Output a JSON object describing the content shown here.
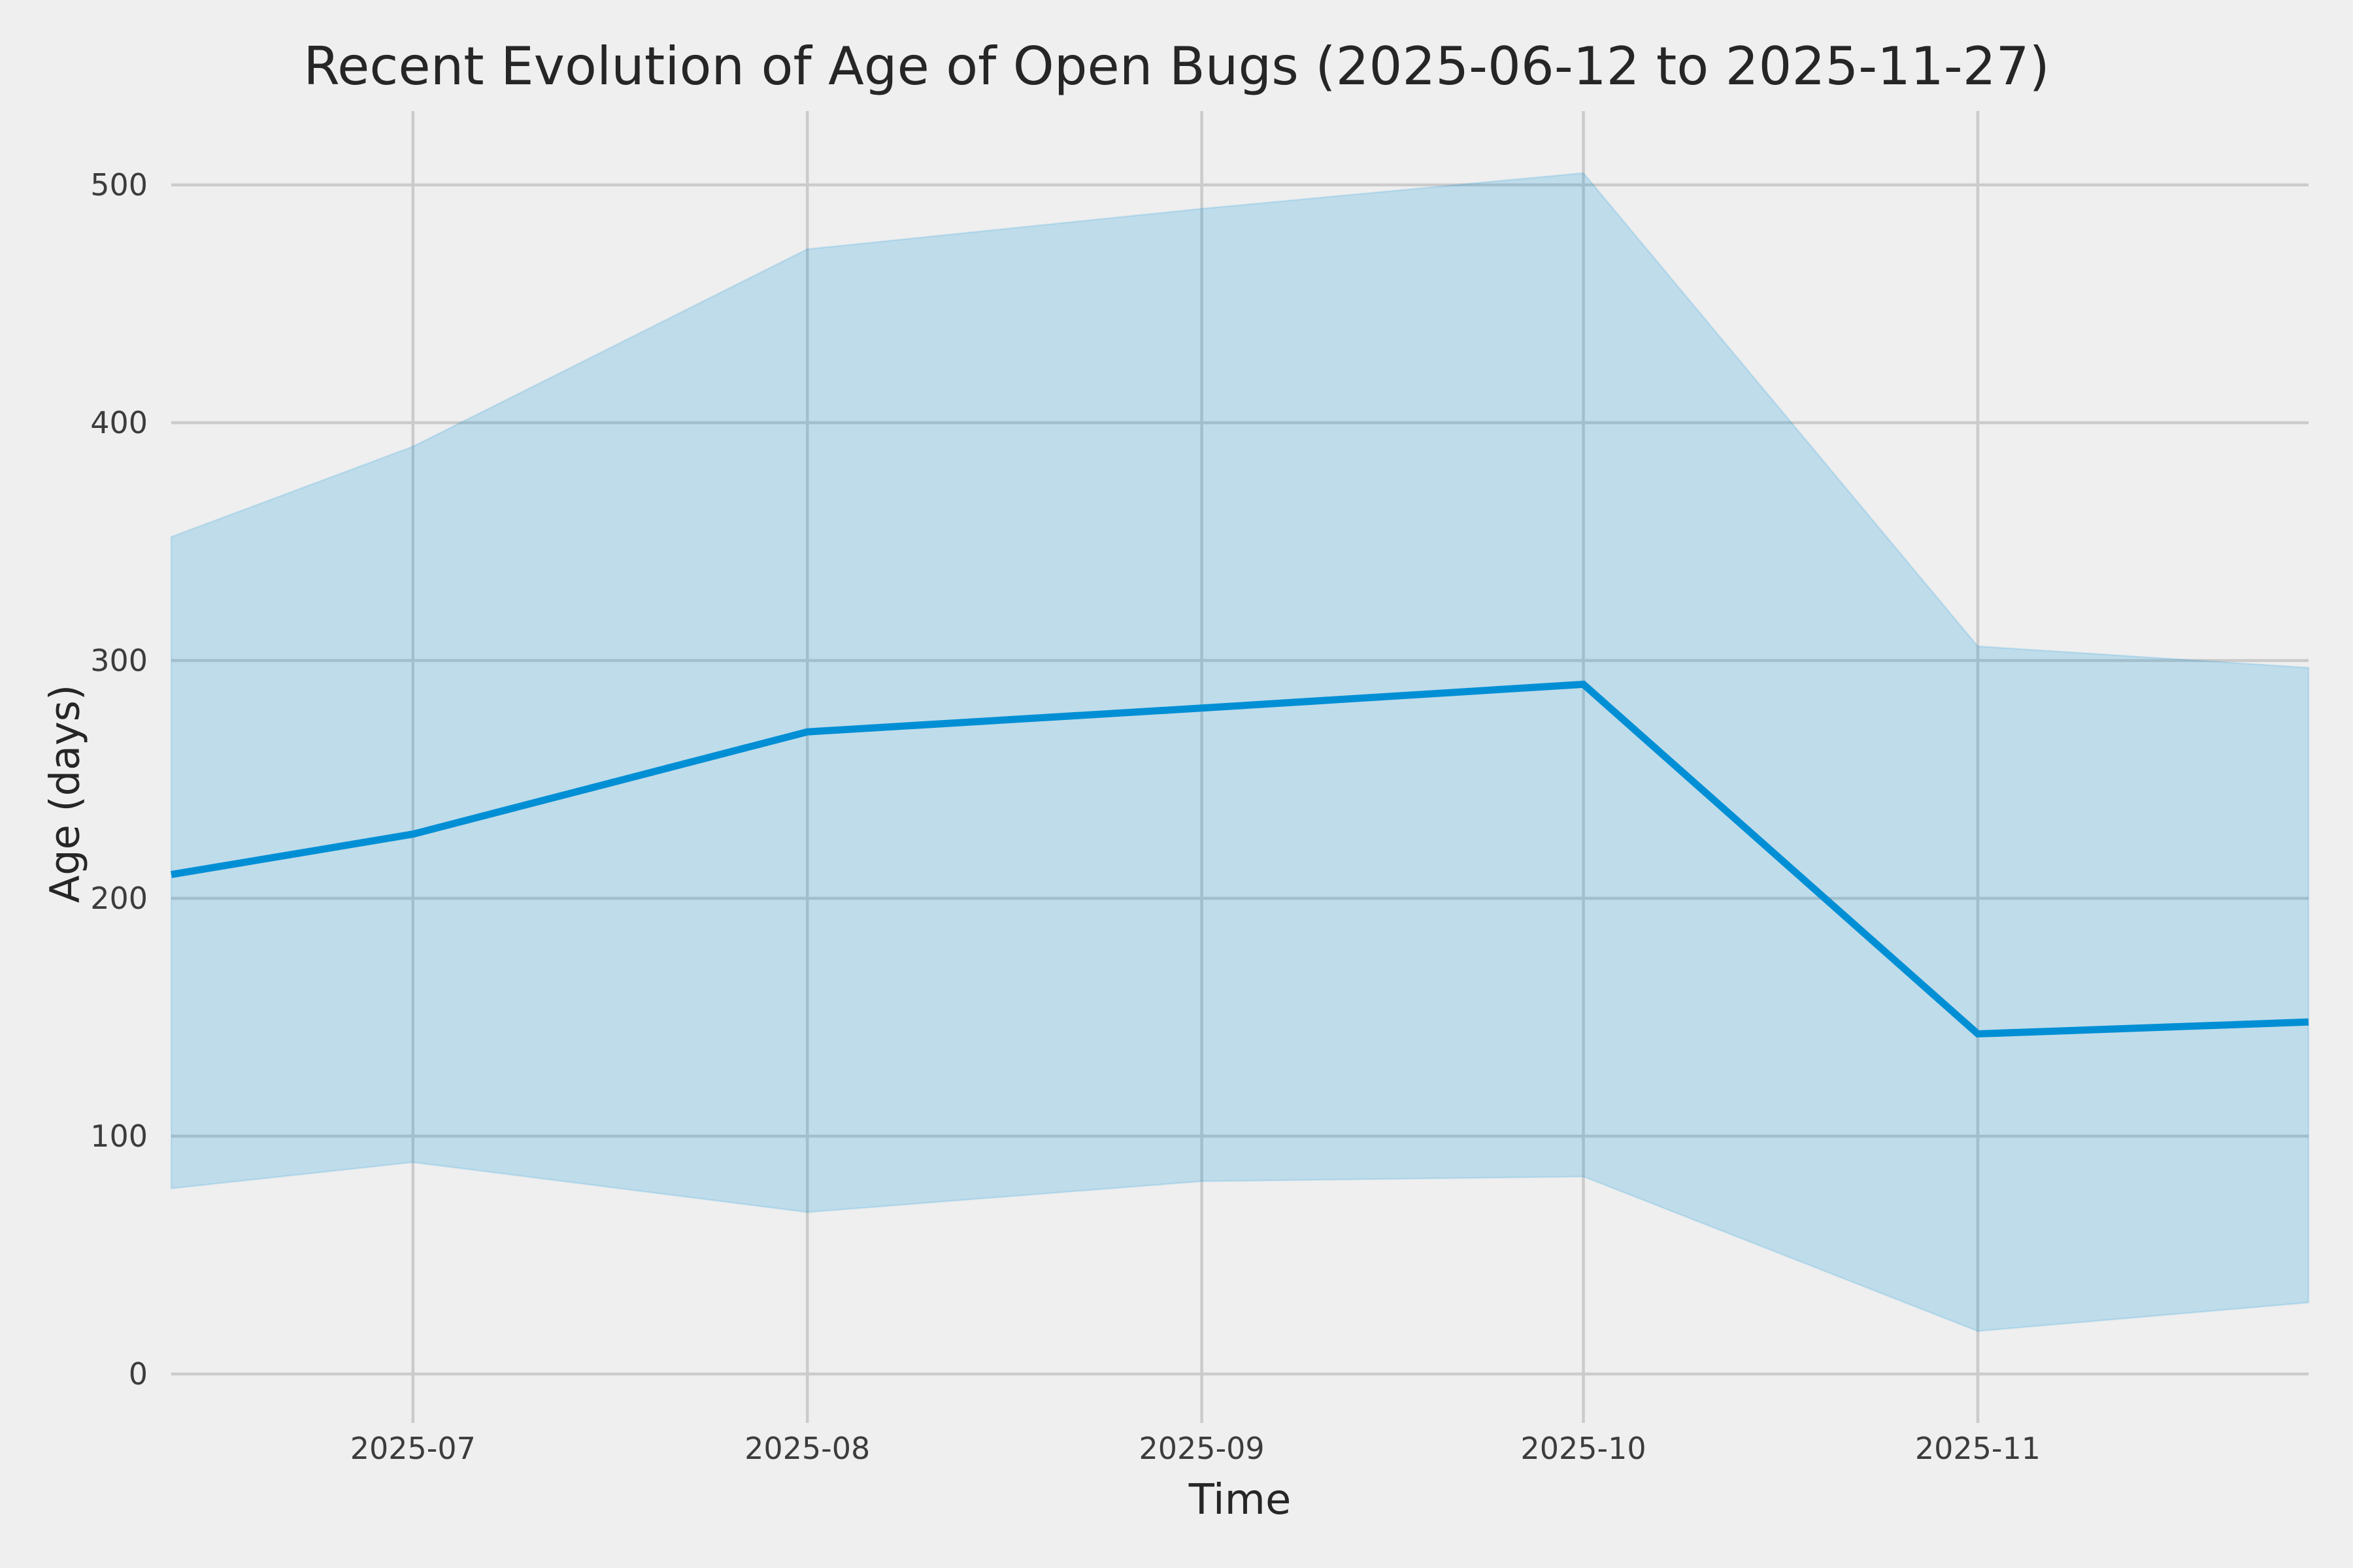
{
  "chart_data": {
    "type": "line",
    "title": "Recent Evolution of Age of Open Bugs (2025-06-12 to 2025-11-27)",
    "xlabel": "Time",
    "ylabel": "Age (days)",
    "x_dates": [
      "2025-06-12",
      "2025-07-01",
      "2025-08-01",
      "2025-09-01",
      "2025-10-01",
      "2025-11-01",
      "2025-11-27"
    ],
    "x_days_from_start": [
      0,
      19,
      50,
      81,
      111,
      142,
      168
    ],
    "series": [
      {
        "name": "mean_age",
        "values": [
          210,
          227,
          270,
          280,
          290,
          143,
          148
        ]
      },
      {
        "name": "band_upper",
        "values": [
          352,
          390,
          473,
          490,
          505,
          306,
          297
        ]
      },
      {
        "name": "band_lower",
        "values": [
          78,
          89,
          68,
          81,
          83,
          18,
          30
        ]
      }
    ],
    "x_tick_labels": [
      "2025-07",
      "2025-08",
      "2025-09",
      "2025-10",
      "2025-11"
    ],
    "x_tick_days": [
      19,
      50,
      81,
      111,
      142
    ],
    "y_ticks": [
      0,
      100,
      200,
      300,
      400,
      500
    ],
    "xlim": [
      "2025-06-12",
      "2025-11-27"
    ],
    "ylim": [
      -18,
      531
    ],
    "grid": true,
    "legend": null,
    "colors": {
      "background": "#efefef",
      "grid": "#cbcbcb",
      "line": "#008fd5",
      "band_fill": "rgba(0,143,213,0.20)",
      "band_edge": "rgba(0,143,213,0.15)",
      "tick_text": "#3c3c3c",
      "label_text": "#262626"
    }
  }
}
